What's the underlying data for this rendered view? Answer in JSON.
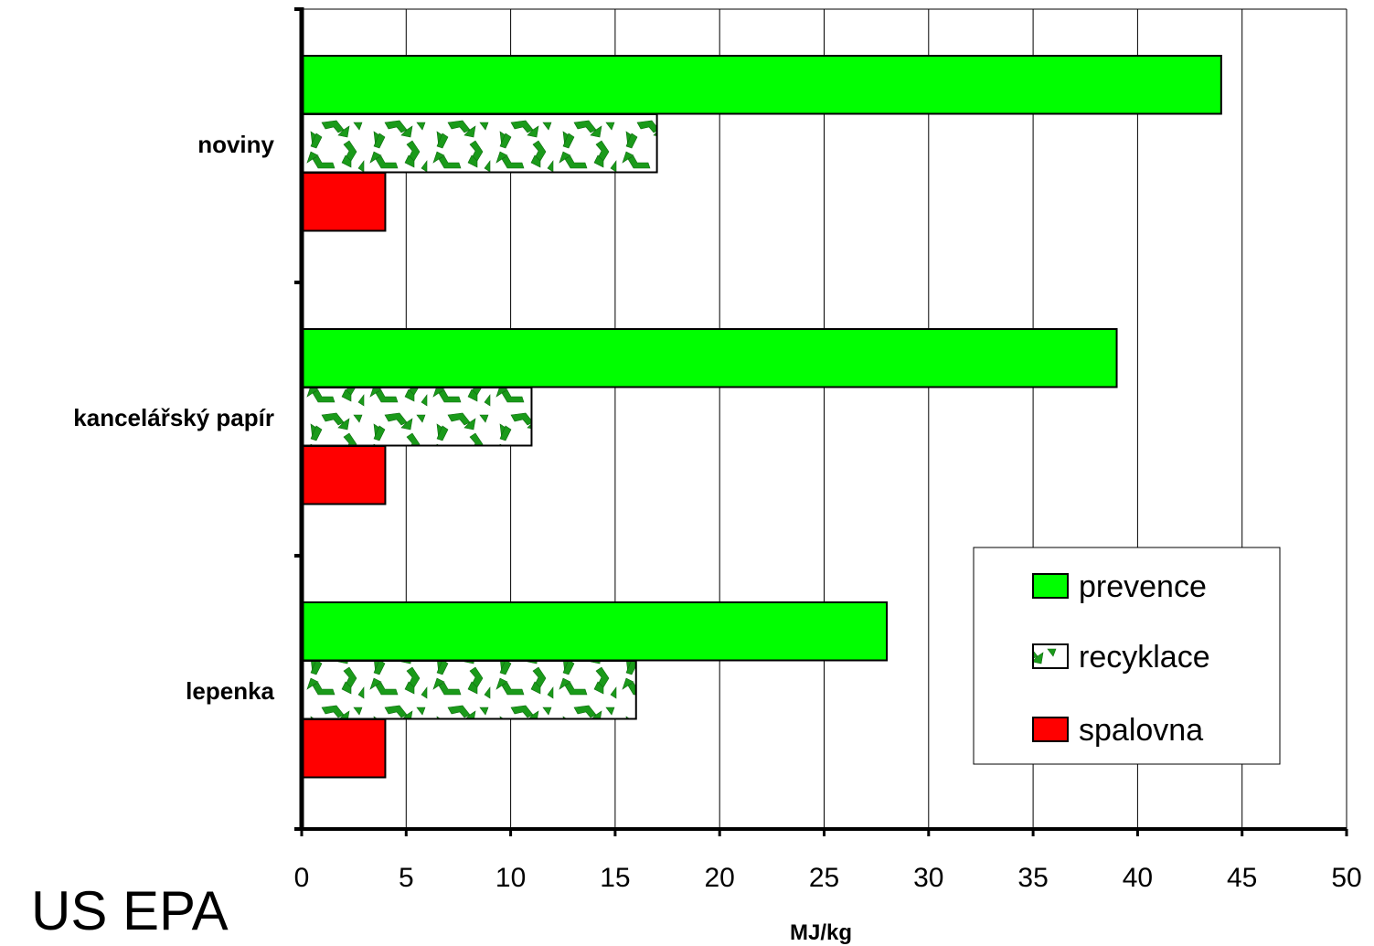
{
  "source_label": "US EPA",
  "chart_data": {
    "type": "bar",
    "orientation": "horizontal",
    "categories": [
      "noviny",
      "kancelářský papír",
      "lepenka"
    ],
    "series": [
      {
        "name": "prevence",
        "values": [
          44,
          39,
          28
        ],
        "color": "#00ff00",
        "pattern": "solid"
      },
      {
        "name": "recyklace",
        "values": [
          17,
          11,
          16
        ],
        "color": "#1a9a1a",
        "pattern": "recycle-symbol"
      },
      {
        "name": "spalovna",
        "values": [
          4,
          4,
          4
        ],
        "color": "#ff0000",
        "pattern": "solid"
      }
    ],
    "xlabel": "MJ/kg",
    "ylabel": "",
    "xlim": [
      0,
      50
    ],
    "xticks": [
      "0",
      "5",
      "10",
      "15",
      "20",
      "25",
      "30",
      "35",
      "40",
      "45",
      "50"
    ],
    "grid": "vertical",
    "legend_position": "bottom-right"
  }
}
